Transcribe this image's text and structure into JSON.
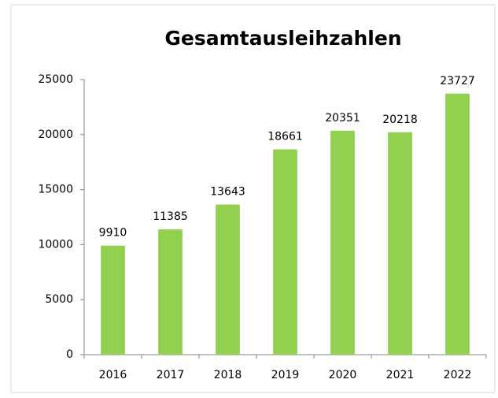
{
  "chart_data": {
    "type": "bar",
    "title": "Gesamtausleihzahlen",
    "categories": [
      "2016",
      "2017",
      "2018",
      "2019",
      "2020",
      "2021",
      "2022"
    ],
    "values": [
      9910,
      11385,
      13643,
      18661,
      20351,
      20218,
      23727
    ],
    "color": "#92d050",
    "ylim": [
      0,
      25000
    ],
    "yticks": [
      0,
      5000,
      10000,
      15000,
      20000,
      25000
    ],
    "grid": false
  }
}
